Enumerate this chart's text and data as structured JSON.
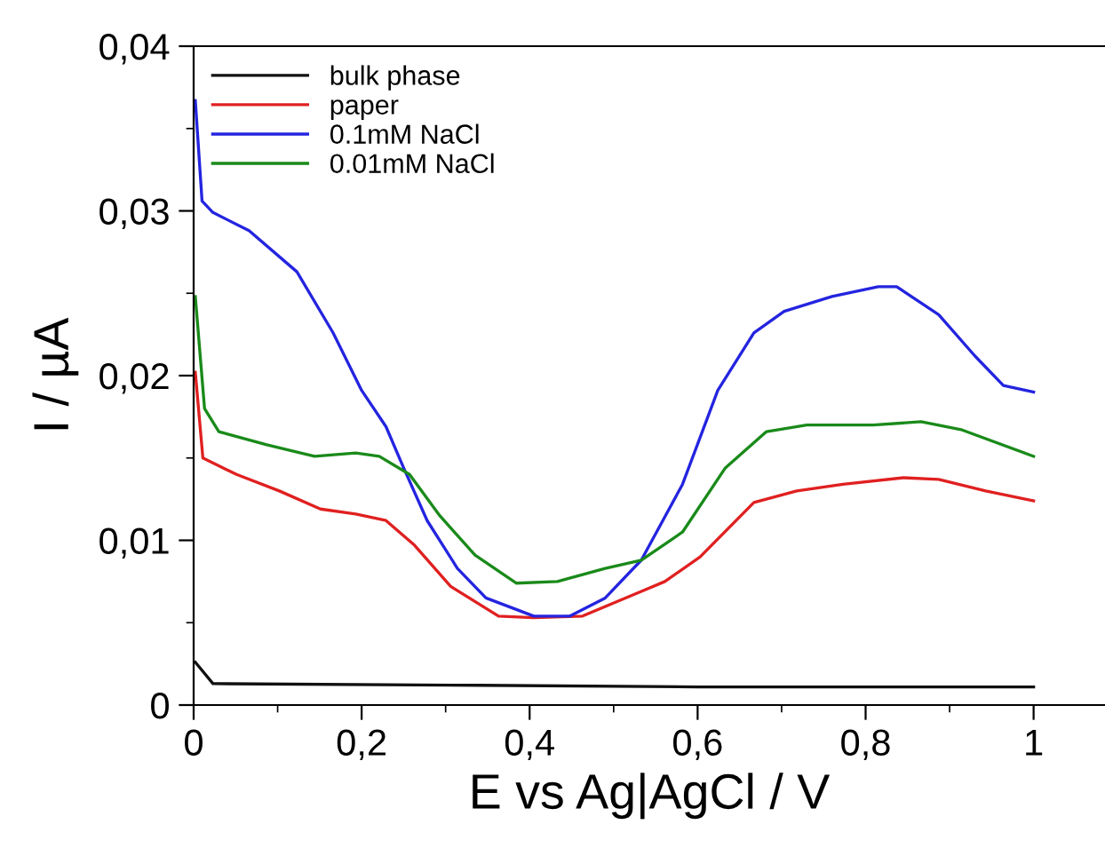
{
  "chart_data": {
    "type": "line",
    "xlabel": "E vs Ag|AgCl / V",
    "ylabel": "I / µA",
    "xlim": [
      0,
      1.085
    ],
    "ylim": [
      0,
      0.04
    ],
    "xticks": [
      {
        "value": 0,
        "label": "0"
      },
      {
        "value": 0.2,
        "label": "0,2"
      },
      {
        "value": 0.4,
        "label": "0,4"
      },
      {
        "value": 0.6,
        "label": "0,6"
      },
      {
        "value": 0.8,
        "label": "0,8"
      },
      {
        "value": 1,
        "label": "1"
      }
    ],
    "yticks": [
      {
        "value": 0,
        "label": "0"
      },
      {
        "value": 0.01,
        "label": "0,01"
      },
      {
        "value": 0.02,
        "label": "0,02"
      },
      {
        "value": 0.03,
        "label": "0,03"
      },
      {
        "value": 0.04,
        "label": "0,04"
      }
    ],
    "grid": false,
    "legend": "top left",
    "marker": "none",
    "line_style": "solid",
    "series": [
      {
        "name": "bulk phase",
        "color": "#111111",
        "x": [
          0.002,
          0.023,
          0.34,
          0.6,
          1.0
        ],
        "values": [
          0.0026,
          0.0013,
          0.0012,
          0.0011,
          0.0011
        ]
      },
      {
        "name": "paper",
        "color": "#e02020",
        "x": [
          0.002,
          0.011,
          0.051,
          0.102,
          0.151,
          0.193,
          0.229,
          0.263,
          0.306,
          0.363,
          0.405,
          0.463,
          0.533,
          0.561,
          0.603,
          0.667,
          0.718,
          0.773,
          0.845,
          0.887,
          0.943,
          1.0
        ],
        "values": [
          0.0202,
          0.015,
          0.014,
          0.013,
          0.0119,
          0.0116,
          0.0112,
          0.0097,
          0.0072,
          0.0054,
          0.0053,
          0.0054,
          0.0069,
          0.0075,
          0.009,
          0.0123,
          0.013,
          0.0134,
          0.0138,
          0.0137,
          0.013,
          0.0124
        ]
      },
      {
        "name": "0.1mM NaCl",
        "color": "#2424e0",
        "x": [
          0.002,
          0.01,
          0.023,
          0.066,
          0.123,
          0.166,
          0.2,
          0.229,
          0.25,
          0.278,
          0.314,
          0.348,
          0.405,
          0.448,
          0.49,
          0.533,
          0.582,
          0.624,
          0.667,
          0.703,
          0.76,
          0.815,
          0.837,
          0.887,
          0.93,
          0.964,
          1.0
        ],
        "values": [
          0.0367,
          0.0306,
          0.0299,
          0.0288,
          0.0263,
          0.0226,
          0.0191,
          0.0169,
          0.0144,
          0.0112,
          0.0083,
          0.0065,
          0.0054,
          0.0054,
          0.0065,
          0.0088,
          0.0134,
          0.0191,
          0.0226,
          0.0239,
          0.0248,
          0.0254,
          0.0254,
          0.0237,
          0.0212,
          0.0194,
          0.019
        ]
      },
      {
        "name": "0.01mM NaCl",
        "color": "#1a8a1a",
        "x": [
          0.002,
          0.013,
          0.03,
          0.087,
          0.144,
          0.193,
          0.221,
          0.257,
          0.293,
          0.335,
          0.384,
          0.433,
          0.49,
          0.533,
          0.582,
          0.633,
          0.682,
          0.73,
          0.809,
          0.866,
          0.915,
          1.0
        ],
        "values": [
          0.0248,
          0.018,
          0.0166,
          0.0158,
          0.0151,
          0.0153,
          0.0151,
          0.014,
          0.0115,
          0.0091,
          0.0074,
          0.0075,
          0.0083,
          0.0088,
          0.0105,
          0.0144,
          0.0166,
          0.017,
          0.017,
          0.0172,
          0.0167,
          0.0151
        ]
      }
    ]
  }
}
